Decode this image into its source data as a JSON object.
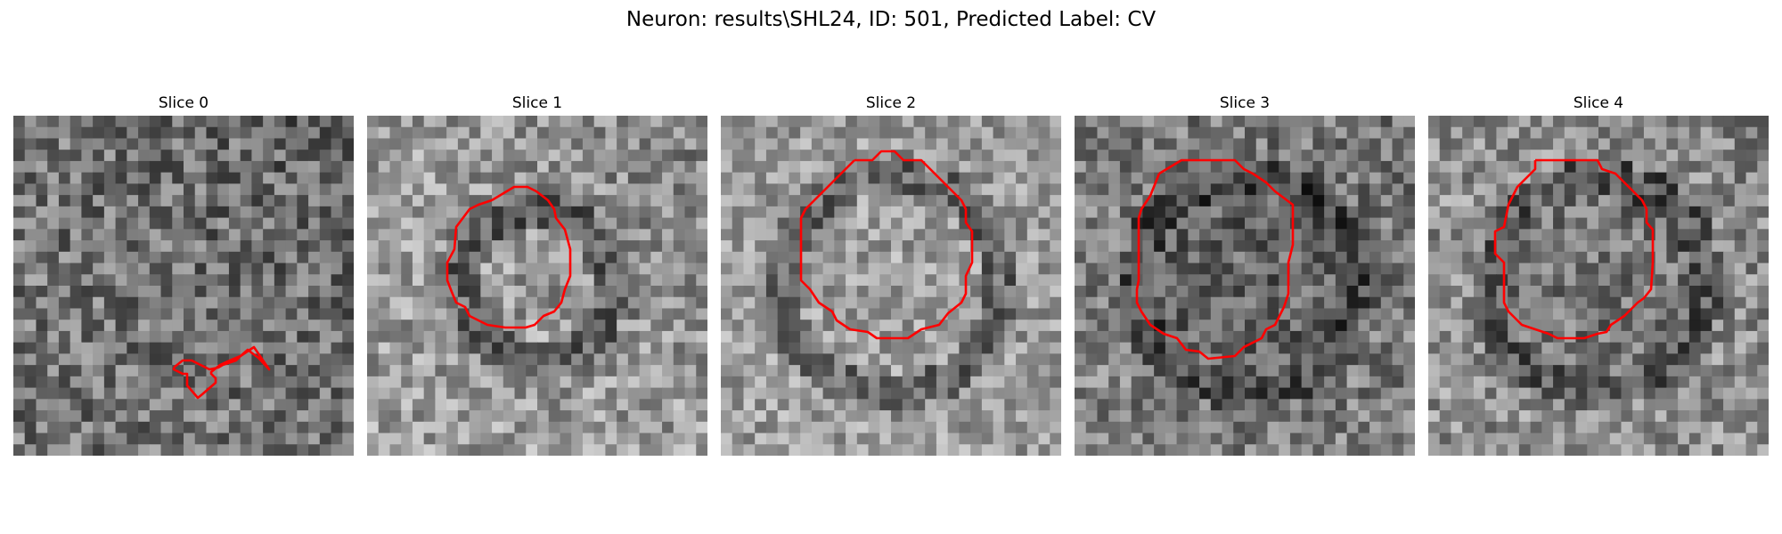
{
  "figure": {
    "title": "Neuron: results\\SHL24, ID: 501, Predicted Label: CV"
  },
  "colors": {
    "outline": "#ff0000",
    "background": "#ffffff"
  },
  "panels": [
    {
      "title": "Slice 0",
      "seed": 17,
      "mean": 118,
      "spread": 60,
      "ring": 0,
      "grad": 0.5
    },
    {
      "title": "Slice 1",
      "seed": 31,
      "mean": 150,
      "spread": 55,
      "ring": 1,
      "grad": 0.8
    },
    {
      "title": "Slice 2",
      "seed": 53,
      "mean": 150,
      "spread": 50,
      "ring": 2,
      "grad": 0.2
    },
    {
      "title": "Slice 3",
      "seed": 71,
      "mean": 120,
      "spread": 55,
      "ring": 3,
      "grad": 0.4
    },
    {
      "title": "Slice 4",
      "seed": 97,
      "mean": 135,
      "spread": 55,
      "ring": 4,
      "grad": 0.3
    }
  ]
}
